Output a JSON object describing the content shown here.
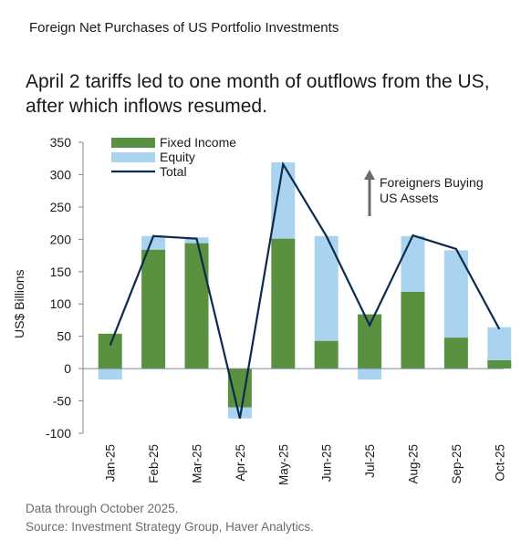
{
  "header": {
    "kicker": "Foreign Net Purchases of US Portfolio Investments",
    "headline": "April 2 tariffs led to one month of outflows from the US, after which inflows resumed."
  },
  "footer": {
    "note": "Data through October 2025.",
    "source": "Source: Investment Strategy Group, Haver Analytics."
  },
  "colors": {
    "fixed_income": "#5a9140",
    "equity": "#a9d3ef",
    "total": "#0c2a4e",
    "axis": "#7a8a99"
  },
  "chart_data": {
    "type": "bar",
    "stacked": true,
    "categories": [
      "Jan-25",
      "Feb-25",
      "Mar-25",
      "Apr-25",
      "May-25",
      "Jun-25",
      "Jul-25",
      "Aug-25",
      "Sep-25",
      "Oct-25"
    ],
    "series": [
      {
        "name": "Fixed Income",
        "kind": "bar",
        "values": [
          54,
          184,
          194,
          -60,
          201,
          43,
          84,
          119,
          48,
          13
        ]
      },
      {
        "name": "Equity",
        "kind": "bar",
        "values": [
          -17,
          21,
          9,
          -17,
          118,
          162,
          -17,
          86,
          135,
          51
        ]
      },
      {
        "name": "Total",
        "kind": "line",
        "values": [
          36,
          205,
          201,
          -77,
          316,
          205,
          67,
          206,
          185,
          61
        ]
      }
    ],
    "ylabel": "US$ Billions",
    "ylim": [
      -100,
      350
    ],
    "yticks": [
      -100,
      -50,
      0,
      50,
      100,
      150,
      200,
      250,
      300,
      350
    ],
    "legend": "top-left",
    "grid": false,
    "annotation": {
      "text_line1": "Foreigners Buying",
      "text_line2": "US Assets",
      "arrow": "up"
    }
  }
}
